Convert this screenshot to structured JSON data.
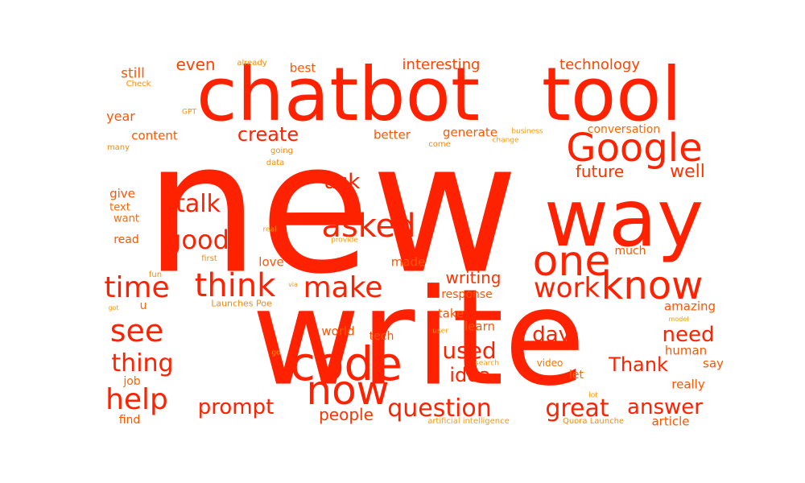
{
  "words": [
    {
      "text": "new",
      "color": "#ff2200"
    },
    {
      "text": "write",
      "color": "#ff2200"
    },
    {
      "text": "chatbot",
      "color": "#ff2200"
    },
    {
      "text": "tool",
      "color": "#ff2200"
    },
    {
      "text": "way",
      "color": "#ff2200"
    },
    {
      "text": "Google",
      "color": "#ff2200"
    },
    {
      "text": "code",
      "color": "#ff2200"
    },
    {
      "text": "now",
      "color": "#ff2200"
    },
    {
      "text": "one",
      "color": "#ff2200"
    },
    {
      "text": "know",
      "color": "#ff2200"
    },
    {
      "text": "asked",
      "color": "#ff2200"
    },
    {
      "text": "think",
      "color": "#ff2200"
    },
    {
      "text": "make",
      "color": "#ff2200"
    },
    {
      "text": "time",
      "color": "#ff2200"
    },
    {
      "text": "work",
      "color": "#ff2200"
    },
    {
      "text": "help",
      "color": "#ff2200"
    },
    {
      "text": "see",
      "color": "#ff2200"
    },
    {
      "text": "good",
      "color": "#ff2200"
    },
    {
      "text": "talk",
      "color": "#ff2200"
    },
    {
      "text": "question",
      "color": "#ff2200"
    },
    {
      "text": "great",
      "color": "#ff2200"
    },
    {
      "text": "answer",
      "color": "#ff2200"
    },
    {
      "text": "thing",
      "color": "#ff2200"
    },
    {
      "text": "prompt",
      "color": "#ff2200"
    },
    {
      "text": "used",
      "color": "#ff2200"
    },
    {
      "text": "Thank",
      "color": "#ff2200"
    },
    {
      "text": "need",
      "color": "#ff2200"
    },
    {
      "text": "day",
      "color": "#ff2200"
    },
    {
      "text": "idea",
      "color": "#ff2200"
    },
    {
      "text": "ask",
      "color": "#ff2200"
    },
    {
      "text": "create",
      "color": "#ff2200"
    },
    {
      "text": "future",
      "color": "#ff3300"
    },
    {
      "text": "well",
      "color": "#ff3300"
    },
    {
      "text": "people",
      "color": "#ff3300"
    },
    {
      "text": "writing",
      "color": "#ff3300"
    },
    {
      "text": "interesting",
      "color": "#ff4400"
    },
    {
      "text": "technology",
      "color": "#ff4400"
    },
    {
      "text": "even",
      "color": "#ff4400"
    },
    {
      "text": "best",
      "color": "#ff5500"
    },
    {
      "text": "still",
      "color": "#ff5500"
    },
    {
      "text": "year",
      "color": "#ff5500"
    },
    {
      "text": "content",
      "color": "#ff5500"
    },
    {
      "text": "better",
      "color": "#ff5500"
    },
    {
      "text": "generate",
      "color": "#ff5500"
    },
    {
      "text": "conversation",
      "color": "#ff6600"
    },
    {
      "text": "give",
      "color": "#ff5500"
    },
    {
      "text": "text",
      "color": "#ff6600"
    },
    {
      "text": "want",
      "color": "#ff6600"
    },
    {
      "text": "read",
      "color": "#ff5500"
    },
    {
      "text": "love",
      "color": "#ff5500"
    },
    {
      "text": "made",
      "color": "#ff5500"
    },
    {
      "text": "much",
      "color": "#ff5500"
    },
    {
      "text": "response",
      "color": "#ff5500"
    },
    {
      "text": "take",
      "color": "#ff5500"
    },
    {
      "text": "amazing",
      "color": "#ff5500"
    },
    {
      "text": "world",
      "color": "#ff5500"
    },
    {
      "text": "tech",
      "color": "#ff5500"
    },
    {
      "text": "learn",
      "color": "#ff5500"
    },
    {
      "text": "human",
      "color": "#ff5500"
    },
    {
      "text": "say",
      "color": "#ff5500"
    },
    {
      "text": "really",
      "color": "#ff5500"
    },
    {
      "text": "article",
      "color": "#ff5500"
    },
    {
      "text": "find",
      "color": "#ff5500"
    },
    {
      "text": "job",
      "color": "#ff6600"
    },
    {
      "text": "let",
      "color": "#ff6600"
    },
    {
      "text": "video",
      "color": "#ff7700"
    },
    {
      "text": "u",
      "color": "#ff6600"
    },
    {
      "text": "already",
      "color": "#ff8800"
    },
    {
      "text": "Check",
      "color": "#ff8800"
    },
    {
      "text": "GPT",
      "color": "#ff8800"
    },
    {
      "text": "many",
      "color": "#ff8800"
    },
    {
      "text": "going",
      "color": "#ff8800"
    },
    {
      "text": "data",
      "color": "#ff8800"
    },
    {
      "text": "come",
      "color": "#ff8800"
    },
    {
      "text": "business",
      "color": "#ff9900"
    },
    {
      "text": "change",
      "color": "#ff9900"
    },
    {
      "text": "real",
      "color": "#ff9900"
    },
    {
      "text": "provide",
      "color": "#ff9900"
    },
    {
      "text": "first",
      "color": "#ff8800"
    },
    {
      "text": "fun",
      "color": "#ff8800"
    },
    {
      "text": "via",
      "color": "#ff9900"
    },
    {
      "text": "Launches Poe",
      "color": "#ff8800"
    },
    {
      "text": "got",
      "color": "#ff9900"
    },
    {
      "text": "user",
      "color": "#ff9900"
    },
    {
      "text": "search",
      "color": "#ff9900"
    },
    {
      "text": "model",
      "color": "#ff9900"
    },
    {
      "text": "go",
      "color": "#ff9900"
    },
    {
      "text": "lot",
      "color": "#ff9900"
    },
    {
      "text": "Quora Launche",
      "color": "#ff8800"
    },
    {
      "text": "artificial intelligence",
      "color": "#ff9900"
    }
  ]
}
